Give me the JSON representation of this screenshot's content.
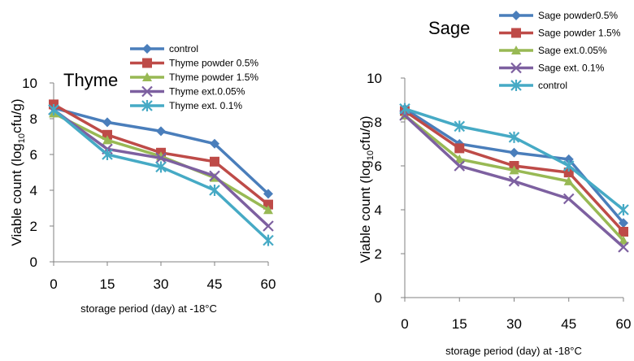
{
  "chart_data": [
    {
      "type": "line",
      "title": "Thyme",
      "xlabel": "storage period (day) at -18°C",
      "ylabel_main": "Viable count (log",
      "ylabel_sub": "10",
      "ylabel_tail": "cfu/g)",
      "x": [
        0,
        15,
        30,
        45,
        60
      ],
      "ylim": [
        0,
        10
      ],
      "yticks": [
        0,
        2,
        4,
        6,
        8,
        10
      ],
      "legend_position": "top-right",
      "series": [
        {
          "name": "control",
          "color": "#4a7ebb",
          "marker": "diamond",
          "values": [
            8.6,
            7.8,
            7.3,
            6.6,
            3.8
          ]
        },
        {
          "name": "Thyme powder 0.5%",
          "color": "#be4b48",
          "marker": "square",
          "values": [
            8.8,
            7.1,
            6.1,
            5.6,
            3.2
          ]
        },
        {
          "name": "Thyme powder 1.5%",
          "color": "#98b954",
          "marker": "triangle",
          "values": [
            8.3,
            6.8,
            5.9,
            4.7,
            2.9
          ]
        },
        {
          "name": "Thyme ext.0.05%",
          "color": "#7d60a0",
          "marker": "x",
          "values": [
            8.5,
            6.3,
            5.8,
            4.8,
            2.0
          ]
        },
        {
          "name": "Thyme ext. 0.1%",
          "color": "#46aac5",
          "marker": "asterisk",
          "values": [
            8.5,
            6.0,
            5.3,
            4.0,
            1.2
          ]
        }
      ]
    },
    {
      "type": "line",
      "title": "Sage",
      "xlabel": "storage period (day) at -18°C",
      "ylabel_main": "Viable count (log",
      "ylabel_sub": "10",
      "ylabel_tail": "cfu/g)",
      "x": [
        0,
        15,
        30,
        45,
        60
      ],
      "ylim": [
        0,
        10
      ],
      "yticks": [
        0,
        2,
        4,
        6,
        8,
        10
      ],
      "legend_position": "top-right",
      "series": [
        {
          "name": "Sage powder0.5%",
          "color": "#4a7ebb",
          "marker": "diamond",
          "values": [
            8.6,
            7.0,
            6.6,
            6.3,
            3.4
          ]
        },
        {
          "name": "Sage powder 1.5%",
          "color": "#be4b48",
          "marker": "square",
          "values": [
            8.5,
            6.8,
            6.0,
            5.7,
            3.0
          ]
        },
        {
          "name": "Sage ext.0.05%",
          "color": "#98b954",
          "marker": "triangle",
          "values": [
            8.3,
            6.3,
            5.8,
            5.3,
            2.6
          ]
        },
        {
          "name": "Sage ext. 0.1%",
          "color": "#7d60a0",
          "marker": "x",
          "values": [
            8.3,
            6.0,
            5.3,
            4.5,
            2.3
          ]
        },
        {
          "name": "control",
          "color": "#46aac5",
          "marker": "asterisk",
          "values": [
            8.6,
            7.8,
            7.3,
            6.0,
            4.0
          ]
        }
      ]
    }
  ]
}
